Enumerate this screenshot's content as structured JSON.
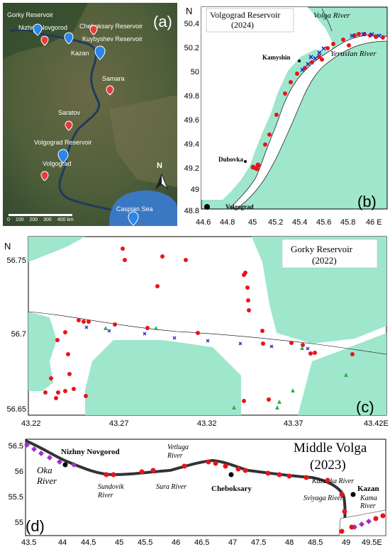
{
  "panel_a": {
    "label": "(a)",
    "places": [
      {
        "name": "Gorky Reservoir",
        "marker": "none"
      },
      {
        "name": "Nizhny Novgorod",
        "marker": "blue"
      },
      {
        "name": "Cheboksary Reservoir",
        "marker": "red"
      },
      {
        "name": "Kuybyshev Reservoir",
        "marker": "blue"
      },
      {
        "name": "Kazan",
        "marker": "blue"
      },
      {
        "name": "Samara",
        "marker": "red"
      },
      {
        "name": "Saratov",
        "marker": "red"
      },
      {
        "name": "Volgograd Reservoir",
        "marker": "blue"
      },
      {
        "name": "Volgograd",
        "marker": "red"
      },
      {
        "name": "Caspian Sea",
        "marker": "blue"
      }
    ],
    "north": "N",
    "scale_labels": [
      "0",
      "100",
      "200",
      "300",
      "400 km"
    ]
  },
  "panel_b": {
    "label": "(b)",
    "title": "Volgograd Reservoir",
    "year": "(2024)",
    "north": "N",
    "river_labels": [
      "Volga River",
      "Yeruslan River"
    ],
    "towns": [
      "Kamyshin",
      "Dubovka",
      "Volgograd"
    ],
    "x_ticks": [
      "44.6",
      "44.8",
      "45",
      "45.2",
      "45.4",
      "45.6",
      "45.8",
      "46 E"
    ],
    "y_ticks": [
      "50.4",
      "50.2",
      "50",
      "49.8",
      "49.6",
      "49.4",
      "49.2",
      "49",
      "48.8"
    ]
  },
  "panel_c": {
    "label": "(c)",
    "title": "Gorky Reservoir",
    "year": "(2022)",
    "north": "N",
    "x_ticks": [
      "43.22",
      "43.27",
      "43.32",
      "43.37",
      "43.42E"
    ],
    "y_ticks": [
      "56.75",
      "56.7",
      "56.65"
    ]
  },
  "panel_d": {
    "label": "(d)",
    "title": "Middle Volga",
    "year": "(2023)",
    "cities": [
      "Nizhny Novgorod",
      "Cheboksary",
      "Kazan"
    ],
    "rivers": [
      "Oka River",
      "Sundovik River",
      "Vetluga River",
      "Sura River",
      "Kazanka River",
      "Sviyaga River",
      "Kama River"
    ],
    "x_ticks": [
      "43.5",
      "44",
      "44.5",
      "45",
      "45.5",
      "46",
      "46.5",
      "47",
      "47.5",
      "48",
      "48.5",
      "49",
      "49.5E"
    ],
    "y_ticks": [
      "56.5",
      "56",
      "55.5",
      "55"
    ]
  },
  "colors": {
    "water": "#9ee7cc",
    "red_point": "#e8141b",
    "blue_cross": "#1d2fd6",
    "green_triangle": "#2fb24a",
    "purple_point": "#a030d0",
    "satellite_bg": "#3f5a3a"
  }
}
